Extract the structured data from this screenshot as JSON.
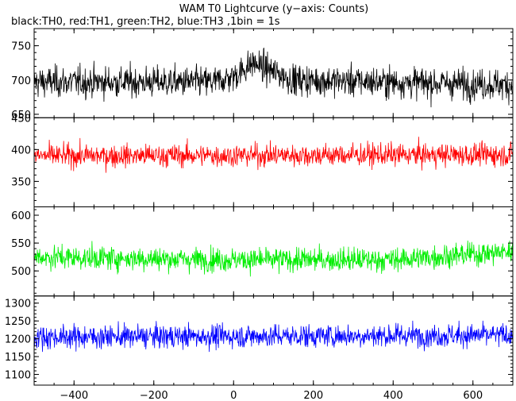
{
  "chart_data": {
    "type": "line",
    "title": "WAM T0 Lightcurve (y−axis: Counts)",
    "subtitle": "black:TH0, red:TH1, green:TH2, blue:TH3 ,1bin = 1s",
    "xlim": [
      -500,
      700
    ],
    "x_ticks": [
      -400,
      -200,
      0,
      200,
      400,
      600
    ],
    "x_tick_labels": [
      "−400",
      "−200",
      "0",
      "200",
      "400",
      "600"
    ],
    "bin_seconds": 1,
    "panels": [
      {
        "series": "TH0",
        "color": "#000000",
        "ylim": [
          645,
          775
        ],
        "y_ticks": [
          650,
          700,
          750
        ],
        "y_tick_labels": [
          "650",
          "700",
          "750"
        ],
        "baseline": 697,
        "noise_amplitude": 38,
        "trend": [
          {
            "x": -500,
            "y": 697
          },
          {
            "x": -50,
            "y": 697
          },
          {
            "x": 0,
            "y": 705
          },
          {
            "x": 50,
            "y": 725
          },
          {
            "x": 100,
            "y": 712
          },
          {
            "x": 150,
            "y": 700
          },
          {
            "x": 700,
            "y": 693
          }
        ]
      },
      {
        "series": "TH1",
        "color": "#ff0000",
        "ylim": [
          310,
          450
        ],
        "y_ticks": [
          350,
          400,
          450
        ],
        "y_tick_labels": [
          "350",
          "400",
          "450"
        ],
        "baseline": 390,
        "noise_amplitude": 30,
        "trend": [
          {
            "x": -500,
            "y": 390
          },
          {
            "x": 700,
            "y": 392
          }
        ]
      },
      {
        "series": "TH2",
        "color": "#00ee00",
        "ylim": [
          455,
          615
        ],
        "y_ticks": [
          500,
          550,
          600
        ],
        "y_tick_labels": [
          "500",
          "550",
          "600"
        ],
        "baseline": 520,
        "noise_amplitude": 36,
        "trend": [
          {
            "x": -500,
            "y": 525
          },
          {
            "x": 0,
            "y": 520
          },
          {
            "x": 400,
            "y": 520
          },
          {
            "x": 700,
            "y": 535
          }
        ]
      },
      {
        "series": "TH3",
        "color": "#0000ff",
        "ylim": [
          1070,
          1320
        ],
        "y_ticks": [
          1100,
          1150,
          1200,
          1250,
          1300
        ],
        "y_tick_labels": [
          "1100",
          "1150",
          "1200",
          "1250",
          "1300"
        ],
        "baseline": 1205,
        "noise_amplitude": 55,
        "trend": [
          {
            "x": -500,
            "y": 1205
          },
          {
            "x": 700,
            "y": 1210
          }
        ]
      }
    ]
  }
}
